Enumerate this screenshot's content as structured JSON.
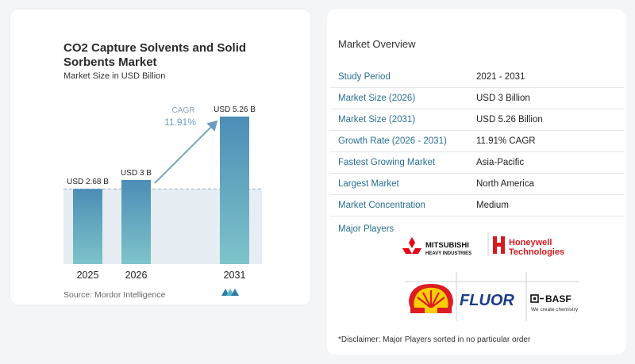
{
  "left_panel": {
    "title": "CO2 Capture Solvents and Solid Sorbents Market",
    "subtitle": "Market Size in USD Billion",
    "source": "Source: Mordor Intelligence",
    "cagr_label": "CAGR",
    "cagr_value": "11.91%"
  },
  "chart_data": {
    "type": "bar",
    "categories": [
      "2025",
      "2026",
      "2031"
    ],
    "values": [
      2.68,
      3,
      5.26
    ],
    "data_labels": [
      "USD 2.68 B",
      "USD 3 B",
      "USD 5.26 B"
    ],
    "ylabel": "",
    "xlabel": "",
    "colors": {
      "bar_top": "#4c8db6",
      "bar_bottom": "#7ec4ca",
      "shade": "#dde7ef",
      "accent": "#6a9dbf"
    },
    "grid": false
  },
  "overview": {
    "title": "Market Overview",
    "rows": [
      {
        "key": "Study Period",
        "value": "2021 - 2031"
      },
      {
        "key": "Market Size (2026)",
        "value": "USD 3 Billion"
      },
      {
        "key": "Market Size (2031)",
        "value": "USD 5.26 Billion"
      },
      {
        "key": "Growth Rate (2026 - 2031)",
        "value": "11.91% CAGR"
      },
      {
        "key": "Fastest Growing Market",
        "value": "Asia-Pacific"
      },
      {
        "key": "Largest Market",
        "value": "North America"
      },
      {
        "key": "Market Concentration",
        "value": "Medium"
      }
    ],
    "major_players_label": "Major Players",
    "logos": {
      "mitsubishi_1": "MITSUBISHI",
      "mitsubishi_2": "HEAVY INDUSTRIES",
      "honeywell_1": "Honeywell",
      "honeywell_2": "Technologies",
      "fluor": "FLUOR",
      "basf_1": "BASF",
      "basf_2": "We create chemistry"
    },
    "disclaimer": "*Disclaimer: Major Players sorted in no particular order"
  }
}
